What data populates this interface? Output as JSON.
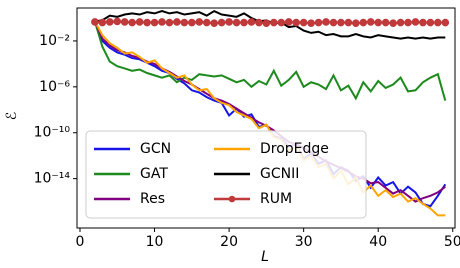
{
  "chart_data": {
    "type": "line",
    "ylabel": "ℰ",
    "xlabel": "L",
    "log_y": true,
    "grid": false,
    "legend_loc": "lower left",
    "legend_columns": 2,
    "xlim": [
      -0.4,
      50.3
    ],
    "xticks": [
      0,
      10,
      20,
      30,
      40,
      50
    ],
    "ylim": [
      5e-19,
      7.4
    ],
    "yticks": [
      {
        "value": 0.01,
        "label": "10⁻²"
      },
      {
        "value": 1e-06,
        "label": "10⁻⁶"
      },
      {
        "value": 1e-10,
        "label": "10⁻¹⁰"
      },
      {
        "value": 1e-14,
        "label": "10⁻¹⁴"
      }
    ],
    "x": [
      2,
      3,
      4,
      5,
      6,
      7,
      8,
      9,
      10,
      11,
      12,
      13,
      14,
      15,
      16,
      17,
      18,
      19,
      20,
      21,
      22,
      23,
      24,
      25,
      26,
      27,
      28,
      29,
      30,
      31,
      32,
      33,
      34,
      35,
      36,
      37,
      38,
      39,
      40,
      41,
      42,
      43,
      44,
      45,
      46,
      47,
      48,
      49
    ],
    "series": [
      {
        "name": "GCN",
        "color": "#1515e6",
        "values": [
          0.5,
          0.01,
          0.0025,
          0.001,
          0.00063,
          0.00032,
          0.00025,
          0.000126,
          6.3e-05,
          2.5e-05,
          1.6e-05,
          5e-06,
          2e-06,
          5e-07,
          3.2e-07,
          1.26e-07,
          6.3e-08,
          4e-08,
          3.2e-09,
          1.26e-08,
          2.5e-09,
          4e-09,
          3.2e-10,
          5e-10,
          5e-11,
          3.2e-11,
          6.3e-12,
          1e-11,
          5e-13,
          1.6e-12,
          2e-13,
          4e-13,
          2.5e-14,
          1e-13,
          5e-14,
          6.3e-15,
          1.6e-14,
          1.6e-15,
          1.26e-14,
          2.5e-15,
          5e-15,
          5e-16,
          2e-15,
          6.3e-16,
          6.3e-17,
          4e-17,
          3.2e-16,
          3.2e-15
        ]
      },
      {
        "name": "GAT",
        "color": "#1d8a1d",
        "values": [
          0.5,
          0.0032,
          0.00016,
          6.3e-05,
          4e-05,
          2.5e-05,
          3.2e-05,
          1.6e-05,
          1e-05,
          6.3e-06,
          1e-05,
          2.5e-06,
          6.3e-06,
          4e-06,
          1.26e-05,
          1e-05,
          8e-06,
          1e-05,
          5e-06,
          2.5e-06,
          4e-06,
          1e-06,
          3.2e-06,
          1.6e-06,
          2.5e-05,
          1.26e-06,
          4e-06,
          2e-05,
          1e-06,
          2.5e-06,
          1.6e-06,
          6.3e-07,
          1e-05,
          5e-07,
          1.26e-06,
          1e-07,
          2.5e-06,
          4e-07,
          3.2e-06,
          8e-07,
          1.6e-06,
          6.3e-06,
          4e-07,
          5e-07,
          2.5e-06,
          6.3e-06,
          1.26e-05,
          6.3e-08
        ]
      },
      {
        "name": "Res",
        "color": "#800080",
        "values": [
          0.5,
          0.016,
          0.004,
          0.0016,
          0.001,
          0.0005,
          0.00032,
          0.00016,
          0.0001,
          4e-05,
          2e-05,
          8e-06,
          3.2e-06,
          1.6e-06,
          6.3e-07,
          2.5e-07,
          1e-07,
          6.3e-08,
          3.2e-08,
          1.26e-08,
          5e-09,
          2e-09,
          8e-10,
          4e-10,
          1.6e-10,
          5e-11,
          1.6e-11,
          1e-11,
          5e-12,
          2e-12,
          8e-13,
          3.2e-13,
          1.6e-13,
          8e-14,
          4e-14,
          1.6e-14,
          1e-14,
          4e-15,
          5e-15,
          1.6e-15,
          5e-16,
          1e-15,
          3.2e-16,
          1e-16,
          2e-16,
          3.2e-16,
          6.3e-16,
          2e-15
        ]
      },
      {
        "name": "DropEdge",
        "color": "#ffa500",
        "values": [
          0.5,
          0.032,
          0.0063,
          0.0025,
          0.0008,
          0.001,
          0.0004,
          0.000126,
          0.0002,
          4e-05,
          1.6e-05,
          6.3e-06,
          1e-05,
          1.6e-06,
          5e-07,
          6.3e-07,
          1e-07,
          4e-08,
          2.5e-08,
          6.3e-09,
          3.2e-09,
          1.6e-09,
          2.5e-10,
          5e-10,
          4e-11,
          2.5e-11,
          3.2e-12,
          6.3e-12,
          4e-13,
          1e-12,
          1e-13,
          2e-13,
          1e-14,
          5e-14,
          3.2e-15,
          1.26e-14,
          6.3e-16,
          2.5e-15,
          3.2e-16,
          1e-15,
          2.5e-16,
          5e-16,
          1e-16,
          2e-16,
          6.3e-17,
          2.5e-17,
          6.3e-18,
          6.3e-18
        ]
      },
      {
        "name": "GCNII",
        "color": "#000000",
        "values": [
          0.5,
          0.63,
          1.6,
          1.26,
          2,
          2.5,
          2,
          3.2,
          2.5,
          4,
          2.5,
          3.2,
          2,
          2.5,
          3.2,
          1.6,
          4,
          2,
          1.6,
          1.26,
          2.5,
          1,
          0.5,
          0.63,
          0.32,
          0.4,
          0.16,
          0.2,
          0.08,
          0.05,
          0.063,
          0.032,
          0.04,
          0.025,
          0.025,
          0.04,
          0.025,
          0.02,
          0.032,
          0.025,
          0.02,
          0.016,
          0.02,
          0.016,
          0.02,
          0.016,
          0.02,
          0.02
        ]
      },
      {
        "name": "RUM",
        "color": "#c0393b",
        "marker": "circle",
        "values": [
          0.45,
          0.4,
          0.45,
          0.5,
          0.45,
          0.4,
          0.45,
          0.4,
          0.4,
          0.45,
          0.4,
          0.45,
          0.4,
          0.4,
          0.45,
          0.4,
          0.35,
          0.4,
          0.45,
          0.4,
          0.4,
          0.45,
          0.4,
          0.35,
          0.4,
          0.4,
          0.45,
          0.4,
          0.4,
          0.35,
          0.4,
          0.45,
          0.4,
          0.4,
          0.4,
          0.35,
          0.4,
          0.45,
          0.4,
          0.4,
          0.35,
          0.4,
          0.4,
          0.45,
          0.4,
          0.4,
          0.4,
          0.4
        ]
      }
    ]
  }
}
